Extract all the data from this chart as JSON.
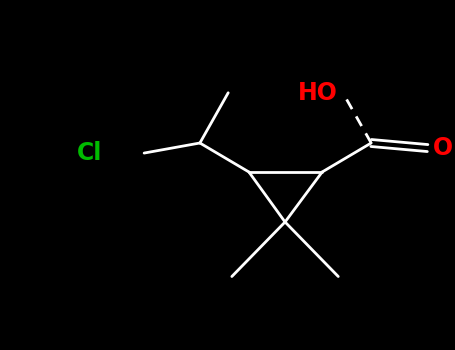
{
  "background_color": "#000000",
  "bond_color": "#ffffff",
  "bond_width": 2.0,
  "figsize": [
    4.55,
    3.5
  ],
  "dpi": 100,
  "HO_label": "HO",
  "HO_color": "#ff0000",
  "O_label": "O",
  "O_color": "#ff0000",
  "Cl_label": "Cl",
  "Cl_color": "#00bb00",
  "label_fontsize": 15
}
